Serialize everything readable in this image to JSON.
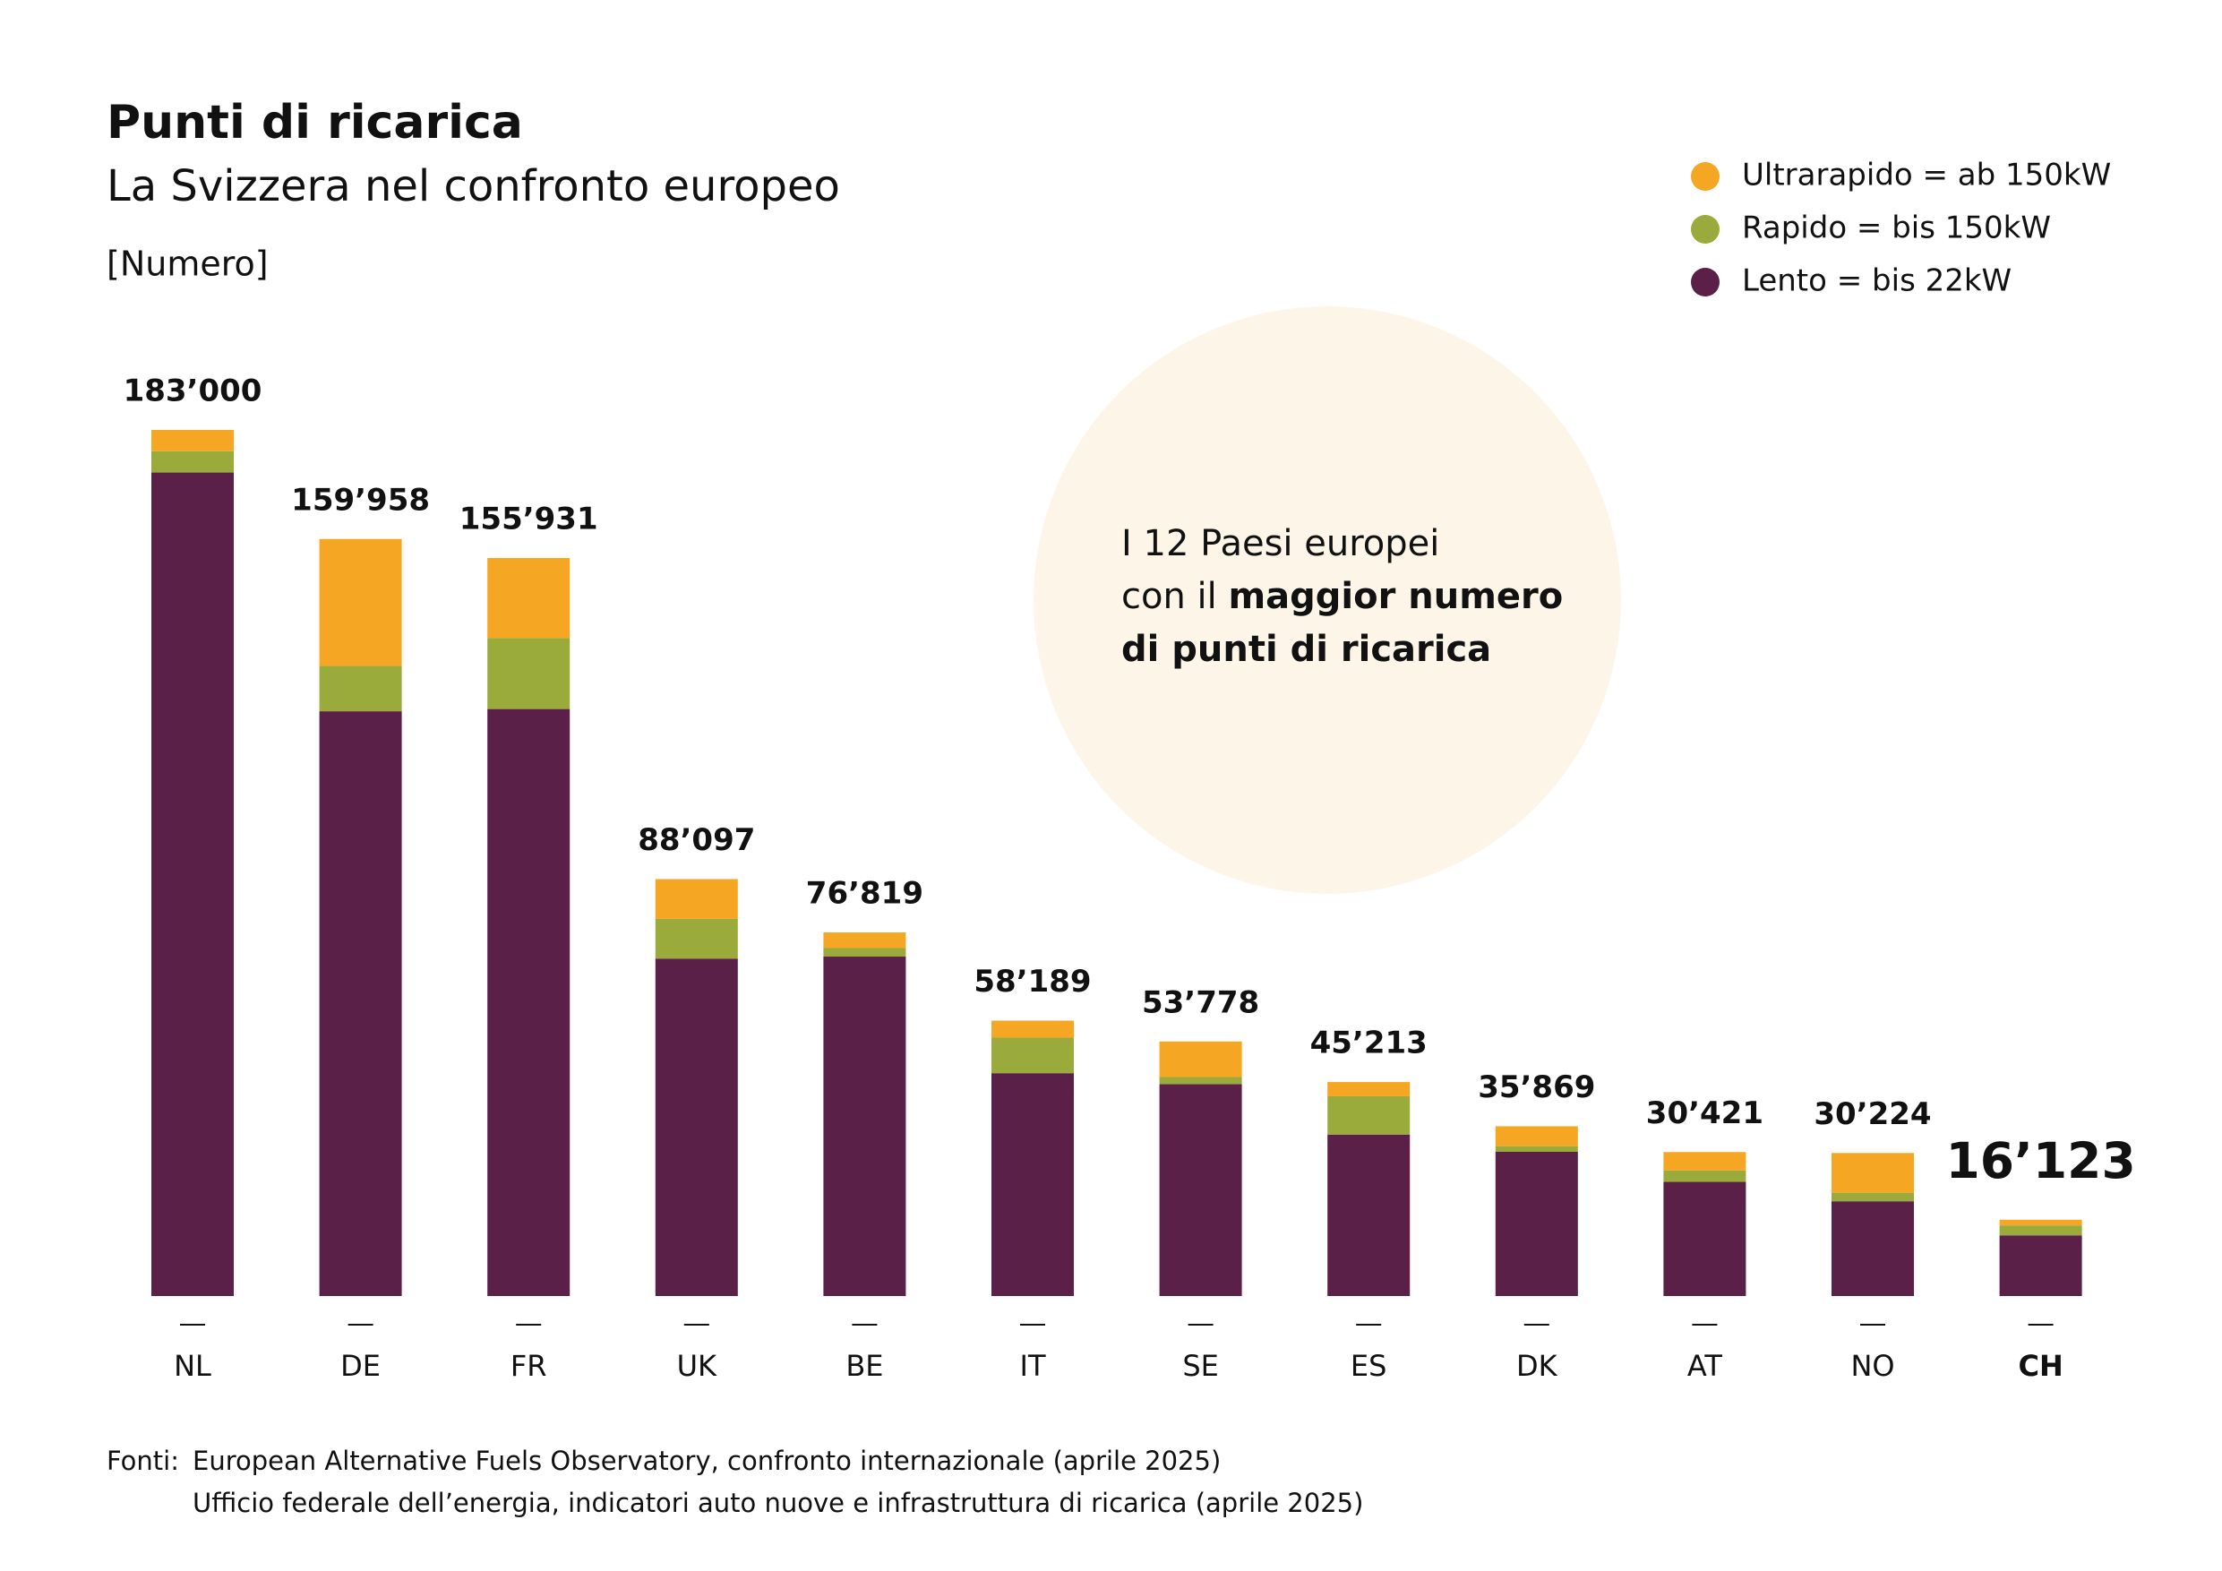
{
  "chart_data": {
    "type": "stacked_bar",
    "title": "Punti di ricarica",
    "subtitle": "La Svizzera nel confronto europeo",
    "unit": "[Numero]",
    "categories": [
      "NL",
      "DE",
      "FR",
      "UK",
      "BE",
      "IT",
      "SE",
      "ES",
      "DK",
      "AT",
      "NO",
      "CH"
    ],
    "highlight": "CH",
    "series": [
      {
        "name": "Ultrarapido = ab 150kW",
        "color": "#f5a623",
        "values": [
          4500,
          26800,
          16900,
          8400,
          3300,
          3600,
          7500,
          3000,
          4200,
          3900,
          8400,
          1200
        ]
      },
      {
        "name": "Rapido = bis 150kW",
        "color": "#9aab3c",
        "values": [
          4500,
          9600,
          15000,
          8400,
          1800,
          7500,
          1500,
          8100,
          1200,
          2400,
          1800,
          2100
        ]
      },
      {
        "name": "Lento = bis 22kW",
        "color": "#5a2048",
        "values": [
          174000,
          123558,
          124031,
          71297,
          71719,
          47089,
          44778,
          34113,
          30469,
          24121,
          20024,
          12823
        ]
      }
    ],
    "totals": [
      183000,
      159958,
      155931,
      88097,
      76819,
      58189,
      53778,
      45213,
      35869,
      30421,
      30224,
      16123
    ],
    "total_labels": [
      "183’000",
      "159’958",
      "155’931",
      "88’097",
      "76’819",
      "58’189",
      "53’778",
      "45’213",
      "35’869",
      "30’421",
      "30’224",
      "16’123"
    ],
    "callout": [
      "I 12 Paesi europei",
      "con il ",
      "maggior numero",
      "di punti di ricarica"
    ],
    "sources": [
      "Fonti:",
      "European Alternative Fuels Observatory, confronto internazionale (aprile 2025)",
      "Ufficio federale dell’energia, indicatori auto nuove e infrastruttura di ricarica (aprile 2025)"
    ]
  }
}
